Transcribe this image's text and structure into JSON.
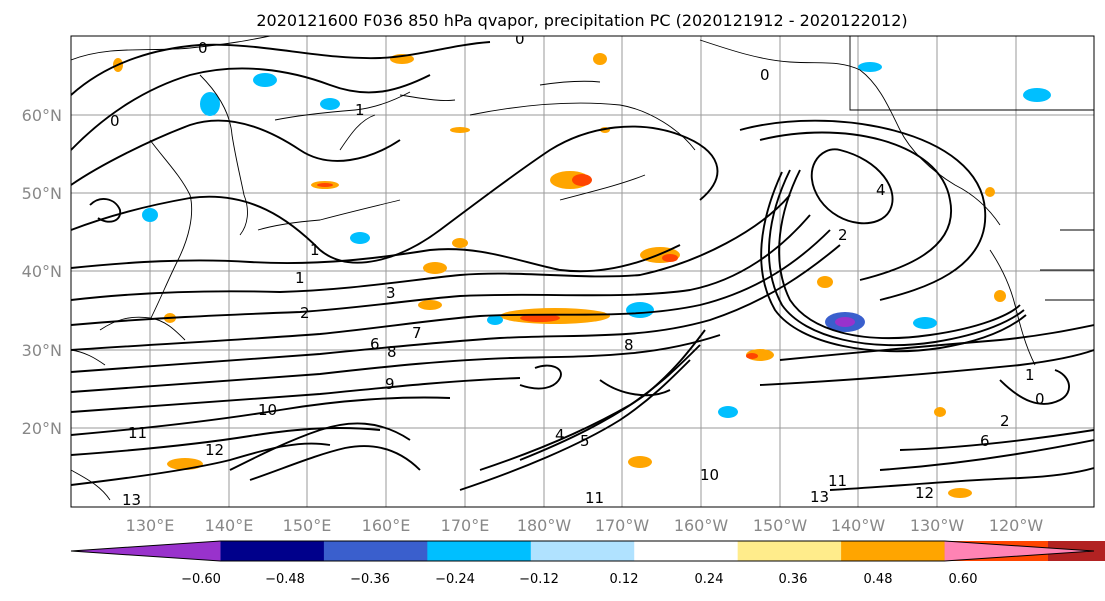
{
  "title": "2020121600 F036 850 hPa qvapor, precipitation PC (2020121912 - 2020122012)",
  "lat_labels": [
    "60°N",
    "50°N",
    "40°N",
    "30°N",
    "20°N"
  ],
  "lon_labels": [
    "130°E",
    "140°E",
    "150°E",
    "160°E",
    "170°E",
    "180°W",
    "170°W",
    "160°W",
    "150°W",
    "140°W",
    "130°W",
    "120°W"
  ],
  "colorbar": {
    "colors": [
      "#9932CC",
      "#00008B",
      "#3A5FCD",
      "#00BFFF",
      "#B0E2FF",
      "#FFFFFF",
      "#FFEC8B",
      "#FFA500",
      "#FF4500",
      "#B22222",
      "#FF83B4"
    ],
    "tick_labels": [
      "−0.60",
      "−0.48",
      "−0.36",
      "−0.24",
      "−0.12",
      "0.12",
      "0.24",
      "0.36",
      "0.48",
      "0.60"
    ]
  },
  "contour_labels": [
    "0",
    "0",
    "0",
    "0",
    "1",
    "1",
    "1",
    "2",
    "2",
    "3",
    "4",
    "6",
    "7",
    "8",
    "8",
    "9",
    "10",
    "10",
    "11",
    "11",
    "11",
    "12",
    "12",
    "13",
    "13",
    "0",
    "1",
    "2",
    "4",
    "5",
    "6"
  ],
  "map_projection": "lat-lon",
  "legend_placement": "bottom"
}
